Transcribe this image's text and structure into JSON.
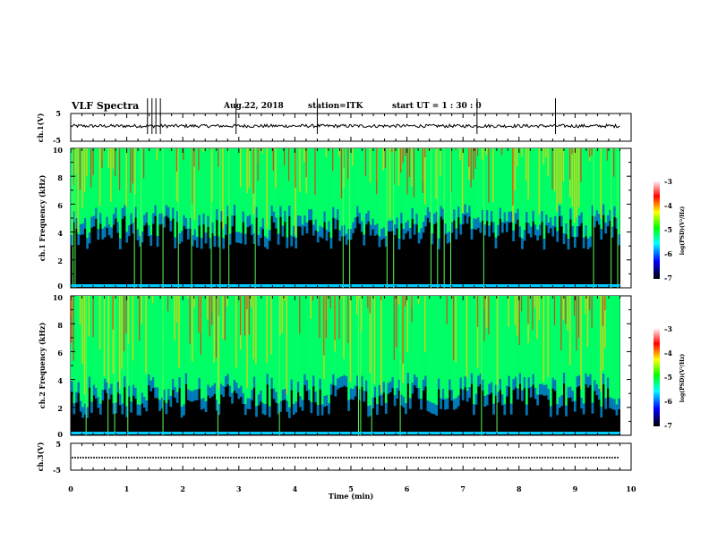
{
  "header": {
    "title": "VLF Spectra",
    "date": "Aug.22, 2018",
    "station": "station=ITK",
    "start": "start  UT =   1 : 30 : 0"
  },
  "colors": {
    "spectrogram_background": "#000000",
    "colorbar_stops": [
      "#000000",
      "#0000ff",
      "#00ffff",
      "#00ff00",
      "#ffff00",
      "#ff0000",
      "#ffffff"
    ]
  },
  "chart_data": [
    {
      "type": "line",
      "ylabel": "ch.1(V)",
      "ylim": [
        -5,
        5
      ],
      "yticks": [
        "5",
        "-5"
      ],
      "xlim": [
        0,
        10
      ],
      "description_values": {
        "baseline": 0.5,
        "noise_amplitude": 0.6,
        "spike_times_min": [
          1.37,
          1.45,
          1.52,
          1.6,
          2.95,
          4.4,
          7.25,
          8.65
        ]
      }
    },
    {
      "type": "heatmap",
      "ylabel": "ch.1 Frequency (kHz)",
      "ylim": [
        0,
        10
      ],
      "yticks": [
        "0",
        "2",
        "4",
        "6",
        "8",
        "10"
      ],
      "xlim": [
        0,
        10
      ],
      "data_end_min": 9.8,
      "colorbar": {
        "label": "log(PSD)(V²/Hz)",
        "ticks": [
          "-3",
          "-4",
          "-5",
          "-6",
          "-7"
        ],
        "range": [
          -7,
          -3
        ]
      }
    },
    {
      "type": "heatmap",
      "ylabel": "ch.2 Frequency (kHz)",
      "ylim": [
        0,
        10
      ],
      "yticks": [
        "0",
        "2",
        "4",
        "6",
        "8",
        "10"
      ],
      "xlim": [
        0,
        10
      ],
      "data_end_min": 9.8,
      "colorbar": {
        "label": "log(PSD)(V²/Hz)",
        "ticks": [
          "-3",
          "-4",
          "-5",
          "-6",
          "-7"
        ],
        "range": [
          -7,
          -3
        ]
      }
    },
    {
      "type": "line",
      "ylabel": "ch.3(V)",
      "ylim": [
        -5,
        5
      ],
      "yticks": [
        "5",
        "-5"
      ],
      "xlim": [
        0,
        10
      ],
      "description_values": {
        "baseline": 0.0
      }
    }
  ],
  "xaxis": {
    "label": "Time  (min)",
    "ticks": [
      "0",
      "1",
      "2",
      "3",
      "4",
      "5",
      "6",
      "7",
      "8",
      "9",
      "10"
    ]
  }
}
